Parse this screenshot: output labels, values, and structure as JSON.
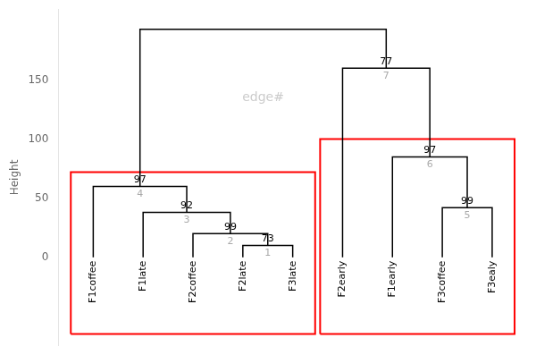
{
  "chart_data": {
    "type": "dendrogram",
    "categories": [
      "F1coffee",
      "F1late",
      "F2coffee",
      "F2late",
      "F3late",
      "F2early",
      "F1early",
      "F3coffee",
      "F3ealy"
    ],
    "nodes": [
      {
        "node": 1,
        "children": [
          "F2late",
          "F3late"
        ],
        "height": 10,
        "support": 73
      },
      {
        "node": 2,
        "children": [
          "F2coffee",
          1
        ],
        "height": 20,
        "support": 99
      },
      {
        "node": 3,
        "children": [
          "F1late",
          2
        ],
        "height": 38,
        "support": 92
      },
      {
        "node": 4,
        "children": [
          "F1coffee",
          3
        ],
        "height": 60,
        "support": 97
      },
      {
        "node": 5,
        "children": [
          "F3coffee",
          "F3ealy"
        ],
        "height": 42,
        "support": 99
      },
      {
        "node": 6,
        "children": [
          "F1early",
          5
        ],
        "height": 85,
        "support": 97
      },
      {
        "node": 7,
        "children": [
          "F2early",
          6
        ],
        "height": 160,
        "support": 77
      },
      {
        "children": [
          4,
          7
        ],
        "height": 193
      }
    ],
    "color": "#000000",
    "node_label_color": "#aaaaaa",
    "edge_label": {
      "text": "edge#",
      "color": "#cccccc"
    },
    "boxes": [
      {
        "from": "F1coffee",
        "to": "F3late",
        "ymin": -65,
        "ymax": 72,
        "color": "red"
      },
      {
        "from": "F2early",
        "to": "F3ealy",
        "ymin": -65,
        "ymax": 100,
        "color": "red"
      }
    ],
    "ylabel": "Height",
    "ylim": [
      -75,
      210
    ],
    "yticks": [
      0,
      50,
      100,
      150
    ],
    "grid": false
  }
}
